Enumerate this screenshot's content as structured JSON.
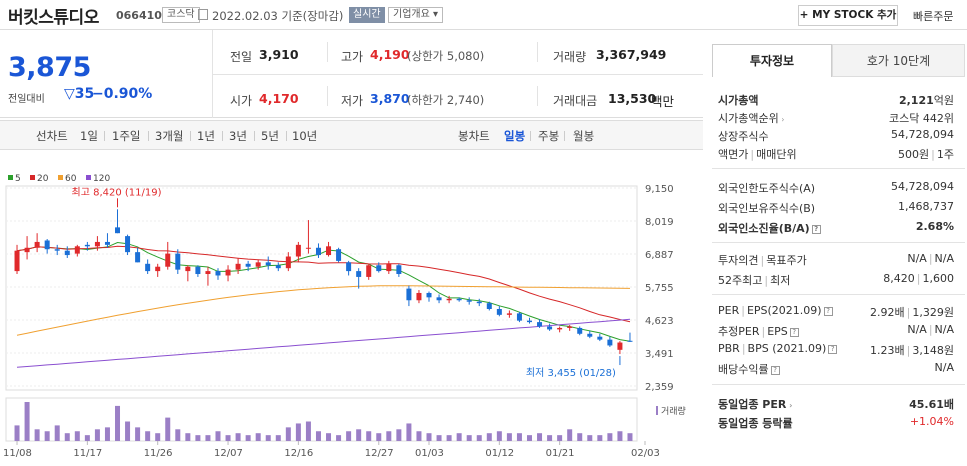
{
  "header": {
    "name": "버킷스튜디오",
    "code": "066410",
    "market": "코스닥",
    "date": "2022.02.03",
    "date_note": "기준(장마감)",
    "realtime": "실시간",
    "company": "기업개요",
    "company_arrow": "▾",
    "mystock": "+ MY STOCK 추가",
    "quick_order": "빠른주문"
  },
  "price": {
    "current": "3,875",
    "change_label": "전일대비",
    "change_symbol": "▽",
    "change": "35",
    "change_pct": "−0.90%"
  },
  "quote": {
    "prev_label": "전일",
    "prev": "3,910",
    "high_label": "고가",
    "high": "4,190",
    "upper_limit": "(상한가 5,080)",
    "volume_label": "거래량",
    "volume": "3,367,949",
    "open_label": "시가",
    "open": "4,170",
    "low_label": "저가",
    "low": "3,870",
    "lower_limit": "(하한가 2,740)",
    "amount_label": "거래대금",
    "amount": "13,530",
    "amount_unit": "백만"
  },
  "periods": {
    "line_chart": "선차트",
    "items": [
      "1일",
      "1주일",
      "3개월",
      "1년",
      "3년",
      "5년",
      "10년"
    ],
    "candle_chart": "봉차트",
    "candle_items": [
      "일봉",
      "주봉",
      "월봉"
    ],
    "active_candle": "일봉"
  },
  "chart_data": {
    "type": "candlestick",
    "legend": [
      {
        "name": "5",
        "color": "#2ca02c"
      },
      {
        "name": "20",
        "color": "#d62728"
      },
      {
        "name": "60",
        "color": "#f0a030"
      },
      {
        "name": "120",
        "color": "#8a4fd0"
      }
    ],
    "y_ticks": [
      "9,150",
      "8,019",
      "6,887",
      "5,755",
      "4,623",
      "3,491",
      "2,359"
    ],
    "ylim": [
      2359,
      9150
    ],
    "x_ticks": [
      "11/08",
      "11/17",
      "11/26",
      "12/07",
      "12/16",
      "12/27",
      "01/03",
      "01/12",
      "01/21",
      "02/03"
    ],
    "high_annotation": "최고 8,420 (11/19)",
    "low_annotation": "최저 3,455 (01/28)",
    "volume_label": "거래량",
    "candles": [
      [
        6300,
        7200,
        6200,
        7000
      ],
      [
        6950,
        7500,
        6700,
        7100
      ],
      [
        7100,
        7600,
        6950,
        7300
      ],
      [
        7350,
        7400,
        6900,
        7050
      ],
      [
        7050,
        7200,
        6850,
        7000
      ],
      [
        7000,
        7150,
        6750,
        6850
      ],
      [
        6900,
        7200,
        6800,
        7150
      ],
      [
        7200,
        7300,
        7000,
        7150
      ],
      [
        7150,
        7500,
        7000,
        7300
      ],
      [
        7300,
        7600,
        7100,
        7200
      ],
      [
        7800,
        8420,
        7600,
        7600
      ],
      [
        7500,
        7550,
        6850,
        6950
      ],
      [
        6950,
        7100,
        6600,
        6600
      ],
      [
        6550,
        6700,
        6200,
        6300
      ],
      [
        6300,
        6550,
        6100,
        6450
      ],
      [
        6450,
        7300,
        6350,
        6900
      ],
      [
        6900,
        7050,
        6200,
        6350
      ],
      [
        6300,
        6500,
        5950,
        6450
      ],
      [
        6450,
        6500,
        6100,
        6200
      ],
      [
        6200,
        6450,
        5800,
        6300
      ],
      [
        6300,
        6400,
        6000,
        6150
      ],
      [
        6150,
        6500,
        5950,
        6350
      ],
      [
        6350,
        6750,
        6200,
        6550
      ],
      [
        6550,
        6650,
        6300,
        6450
      ],
      [
        6450,
        6700,
        6350,
        6600
      ],
      [
        6600,
        6800,
        6350,
        6500
      ],
      [
        6500,
        6600,
        6300,
        6400
      ],
      [
        6400,
        6950,
        6300,
        6800
      ],
      [
        6800,
        7300,
        6600,
        7200
      ],
      [
        7100,
        8050,
        6900,
        7100
      ],
      [
        7100,
        7250,
        6750,
        6850
      ],
      [
        6850,
        7300,
        6800,
        7150
      ],
      [
        7050,
        7100,
        6600,
        6650
      ],
      [
        6600,
        6650,
        6150,
        6300
      ],
      [
        6300,
        6400,
        5700,
        6100
      ],
      [
        6100,
        6550,
        6000,
        6500
      ],
      [
        6500,
        6600,
        6250,
        6300
      ],
      [
        6300,
        6650,
        6200,
        6550
      ],
      [
        6500,
        6550,
        6100,
        6200
      ],
      [
        5700,
        5800,
        5100,
        5300
      ],
      [
        5300,
        5650,
        5200,
        5550
      ],
      [
        5550,
        5600,
        5250,
        5400
      ],
      [
        5400,
        5500,
        5200,
        5300
      ],
      [
        5300,
        5450,
        5200,
        5350
      ],
      [
        5350,
        5400,
        5250,
        5300
      ],
      [
        5300,
        5400,
        5150,
        5250
      ],
      [
        5250,
        5350,
        5100,
        5200
      ],
      [
        5200,
        5250,
        4950,
        5000
      ],
      [
        5000,
        5100,
        4750,
        4800
      ],
      [
        4800,
        4950,
        4700,
        4850
      ],
      [
        4850,
        4900,
        4550,
        4600
      ],
      [
        4600,
        4700,
        4500,
        4550
      ],
      [
        4550,
        4650,
        4350,
        4400
      ],
      [
        4400,
        4500,
        4250,
        4300
      ],
      [
        4300,
        4400,
        4200,
        4350
      ],
      [
        4350,
        4450,
        4250,
        4400
      ],
      [
        4350,
        4400,
        4100,
        4150
      ],
      [
        4150,
        4250,
        4000,
        4050
      ],
      [
        4050,
        4150,
        3900,
        3950
      ],
      [
        3950,
        4050,
        3700,
        3750
      ],
      [
        3600,
        3900,
        3455,
        3850
      ],
      [
        3910,
        4190,
        3870,
        3875
      ]
    ],
    "volumes": [
      8,
      20,
      6,
      5,
      8,
      4,
      5,
      3,
      6,
      7,
      18,
      10,
      7,
      5,
      4,
      12,
      6,
      4,
      3,
      3,
      5,
      3,
      4,
      3,
      4,
      3,
      3,
      7,
      9,
      10,
      5,
      4,
      3,
      5,
      6,
      5,
      4,
      5,
      6,
      9,
      5,
      4,
      3,
      3,
      4,
      3,
      3,
      4,
      5,
      4,
      4,
      3,
      4,
      3,
      3,
      6,
      4,
      3,
      3,
      4,
      5,
      4
    ]
  },
  "tabs": {
    "invest": "투자정보",
    "hoga": "호가 10단계"
  },
  "info": {
    "market_cap_label": "시가총액",
    "market_cap": "2,121",
    "market_cap_unit": "억원",
    "rank_label": "시가총액순위",
    "rank": "코스닥 442위",
    "shares_label": "상장주식수",
    "shares": "54,728,094",
    "par_label": "액면가",
    "trade_unit_label": "매매단위",
    "par": "500원",
    "trade_unit": "1주",
    "foreign_limit_label": "외국인한도주식수(A)",
    "foreign_limit": "54,728,094",
    "foreign_hold_label": "외국인보유주식수(B)",
    "foreign_hold": "1,468,737",
    "foreign_ratio_label": "외국인소진율(B/A)",
    "foreign_ratio": "2.68%",
    "opinion_label": "투자의견",
    "target_label": "목표주가",
    "opinion": "N/A",
    "target": "N/A",
    "w52_label": "52주최고",
    "w52_low_label": "최저",
    "w52_high": "8,420",
    "w52_low": "1,600",
    "per_label": "PER",
    "eps_label": "EPS(2021.09)",
    "per": "2.92배",
    "eps": "1,329원",
    "est_per_label": "추정PER",
    "est_eps_label": "EPS",
    "est_per": "N/A",
    "est_eps": "N/A",
    "pbr_label": "PBR",
    "bps_label": "BPS (2021.09)",
    "pbr": "1.23배",
    "bps": "3,148원",
    "div_label": "배당수익률",
    "div": "N/A",
    "ind_per_label": "동일업종 PER",
    "ind_per": "45.61배",
    "ind_rate_label": "동일업종 등락률",
    "ind_rate": "+1.04%"
  }
}
